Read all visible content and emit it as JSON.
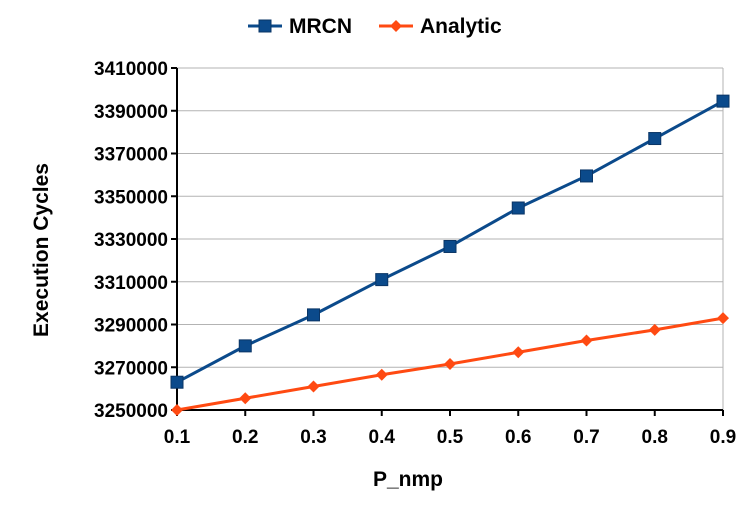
{
  "chart_data": {
    "type": "line",
    "title": "",
    "xlabel": "P_nmp",
    "ylabel": "Execution Cycles",
    "x": [
      0.1,
      0.2,
      0.3,
      0.4,
      0.5,
      0.6,
      0.7,
      0.8,
      0.9
    ],
    "x_tick_labels": [
      "0.1",
      "0.2",
      "0.3",
      "0.4",
      "0.5",
      "0.6",
      "0.7",
      "0.8",
      "0.9"
    ],
    "ylim": [
      3250000,
      3410000
    ],
    "y_ticks": [
      3250000,
      3270000,
      3290000,
      3310000,
      3330000,
      3350000,
      3370000,
      3390000,
      3410000
    ],
    "y_tick_labels": [
      "3250000",
      "3270000",
      "3290000",
      "3310000",
      "3330000",
      "3350000",
      "3370000",
      "3390000",
      "3410000"
    ],
    "grid": "horizontal",
    "legend_position": "top-center",
    "series": [
      {
        "name": "MRCN",
        "color": "#0b4a8b",
        "marker": "square",
        "values": [
          3263000,
          3280000,
          3294500,
          3311000,
          3326500,
          3344500,
          3359500,
          3377000,
          3394500
        ]
      },
      {
        "name": "Analytic",
        "color": "#ff4a12",
        "marker": "diamond",
        "values": [
          3250000,
          3255500,
          3261000,
          3266500,
          3271500,
          3277000,
          3282500,
          3287500,
          3293000
        ]
      }
    ]
  }
}
